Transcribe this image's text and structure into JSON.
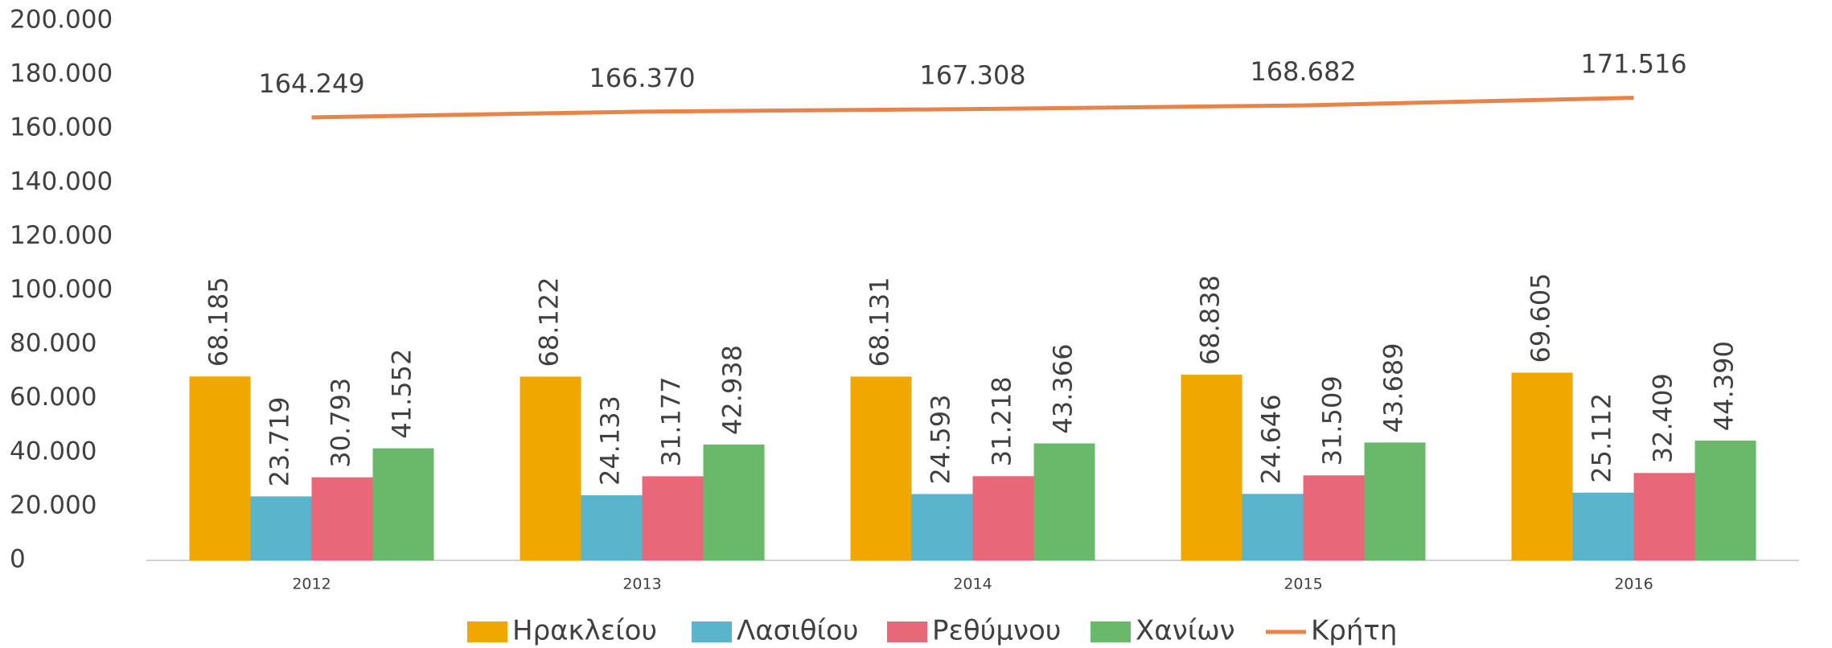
{
  "chart_data": {
    "type": "bar",
    "categories": [
      "2012",
      "2013",
      "2014",
      "2015",
      "2016"
    ],
    "series": [
      {
        "name": "Ηρακλείου",
        "color": "#f0a800",
        "values": [
          68185,
          68122,
          68131,
          68838,
          69605
        ],
        "value_labels": [
          "68.185",
          "68.122",
          "68.131",
          "68.838",
          "69.605"
        ]
      },
      {
        "name": "Λασιθίου",
        "color": "#5ab4cc",
        "values": [
          23719,
          24133,
          24593,
          24646,
          25112
        ],
        "value_labels": [
          "23.719",
          "24.133",
          "24.593",
          "24.646",
          "25.112"
        ]
      },
      {
        "name": "Ρεθύμνου",
        "color": "#e8687a",
        "values": [
          30793,
          31177,
          31218,
          31509,
          32409
        ],
        "value_labels": [
          "30.793",
          "31.177",
          "31.218",
          "31.509",
          "32.409"
        ]
      },
      {
        "name": "Χανίων",
        "color": "#6ab86a",
        "values": [
          41552,
          42938,
          43366,
          43689,
          44390
        ],
        "value_labels": [
          "41.552",
          "42.938",
          "43.366",
          "43.689",
          "44.390"
        ]
      },
      {
        "name": "Κρήτη",
        "type": "line",
        "color": "#e8834a",
        "values": [
          164249,
          166370,
          167308,
          168682,
          171516
        ],
        "value_labels": [
          "164.249",
          "166.370",
          "167.308",
          "168.682",
          "171.516"
        ]
      }
    ],
    "ylim": [
      0,
      200000
    ],
    "yticks": [
      0,
      {
        "value": 20000,
        "label": "20.000"
      },
      {
        "value": 40000,
        "label": "40.000"
      },
      {
        "value": 60000,
        "label": "60.000"
      },
      {
        "value": 80000,
        "label": "80.000"
      },
      {
        "value": 100000,
        "label": "100.000"
      },
      {
        "value": 120000,
        "label": "120.000"
      },
      {
        "value": 140000,
        "label": "140.000"
      },
      {
        "value": 160000,
        "label": "160.000"
      },
      {
        "value": 180000,
        "label": "180.000"
      },
      {
        "value": 200000,
        "label": "200.000"
      }
    ],
    "grid": false,
    "legend": "bottom"
  }
}
